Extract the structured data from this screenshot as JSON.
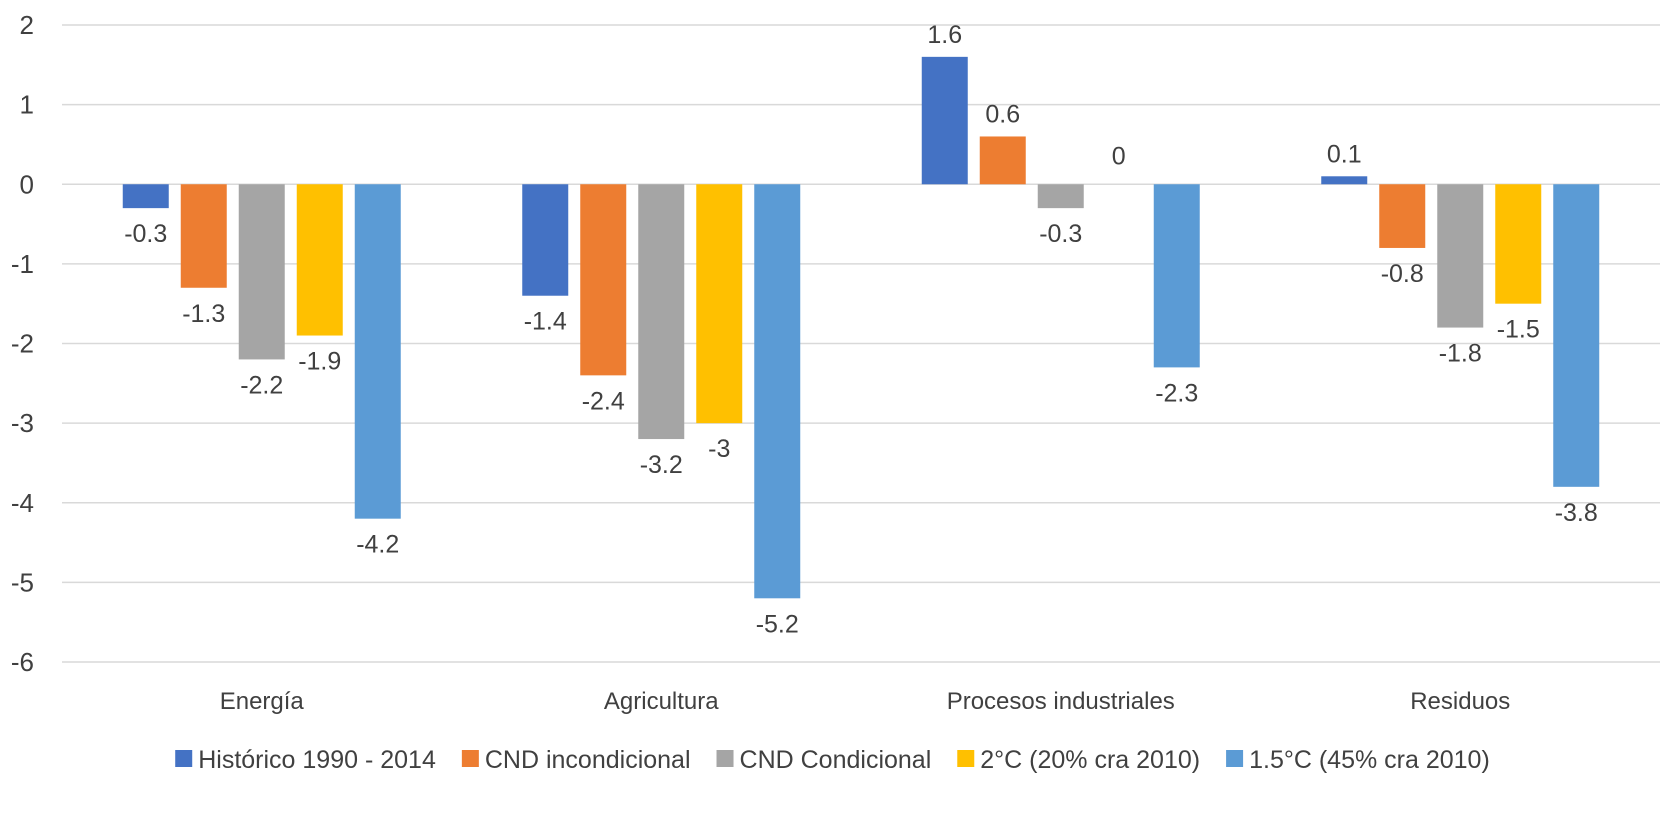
{
  "chart_data": {
    "type": "bar",
    "title": "",
    "xlabel": "",
    "ylabel": "",
    "ylim": [
      -6,
      2
    ],
    "yticks": [
      2,
      1,
      0,
      -1,
      -2,
      -3,
      -4,
      -5,
      -6
    ],
    "grid": true,
    "legend_position": "bottom",
    "categories": [
      "Energía",
      "Agricultura",
      "Procesos industriales",
      "Residuos"
    ],
    "series": [
      {
        "name": "Histórico 1990 - 2014",
        "color": "#4472C4",
        "values": [
          -0.3,
          -1.4,
          1.6,
          0.1
        ]
      },
      {
        "name": "CND incondicional",
        "color": "#ED7D31",
        "values": [
          -1.3,
          -2.4,
          0.6,
          -0.8
        ]
      },
      {
        "name": "CND Condicional",
        "color": "#A5A5A5",
        "values": [
          -2.2,
          -3.2,
          -0.3,
          -1.8
        ]
      },
      {
        "name": "2°C (20% cra 2010)",
        "color": "#FFC000",
        "values": [
          -1.9,
          -3,
          0,
          -1.5
        ]
      },
      {
        "name": "1.5°C (45% cra 2010)",
        "color": "#5B9BD5",
        "values": [
          -4.2,
          -5.2,
          -2.3,
          -3.8
        ]
      }
    ]
  }
}
